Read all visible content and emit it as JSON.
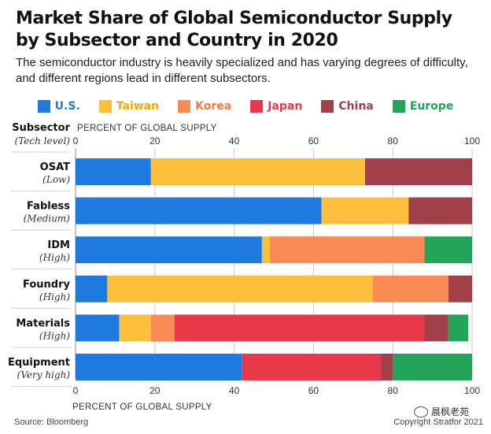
{
  "header": {
    "title": "Market Share of Global Semiconductor Supply by Subsector and Country in 2020",
    "subtitle": "The semiconductor industry is heavily specialized and has varying degrees of difficulty, and different regions lead in different subsectors."
  },
  "legend": [
    {
      "label": "U.S.",
      "color": "#1f7ae0"
    },
    {
      "label": "Taiwan",
      "color": "#fbbf3b"
    },
    {
      "label": "Korea",
      "color": "#f98a55"
    },
    {
      "label": "Japan",
      "color": "#e8394a"
    },
    {
      "label": "China",
      "color": "#a13f4b"
    },
    {
      "label": "Europe",
      "color": "#24a35a"
    }
  ],
  "chart_data": {
    "type": "bar",
    "orientation": "horizontal",
    "stacked": true,
    "categories": [
      "OSAT",
      "Fabless",
      "IDM",
      "Foundry",
      "Materials",
      "Equipment"
    ],
    "category_sublabels": [
      "(Low)",
      "(Medium)",
      "(High)",
      "(High)",
      "(High)",
      "(Very high)"
    ],
    "row_header": "Subsector",
    "row_header_sub": "(Tech level)",
    "xlabel_top": "PERCENT OF GLOBAL SUPPLY",
    "xlabel_bottom": "PERCENT OF GLOBAL SUPPLY",
    "xlim": [
      0,
      100
    ],
    "ticks": [
      0,
      20,
      40,
      60,
      80,
      100
    ],
    "series": [
      {
        "name": "U.S.",
        "color": "#1f7ae0",
        "values": [
          19,
          62,
          47,
          8,
          11,
          42
        ]
      },
      {
        "name": "Taiwan",
        "color": "#fbbf3b",
        "values": [
          54,
          22,
          2,
          67,
          8,
          0
        ]
      },
      {
        "name": "Korea",
        "color": "#f98a55",
        "values": [
          0,
          0,
          39,
          19,
          6,
          0
        ]
      },
      {
        "name": "Japan",
        "color": "#e8394a",
        "values": [
          0,
          0,
          0,
          0,
          63,
          35
        ]
      },
      {
        "name": "China",
        "color": "#a13f4b",
        "values": [
          27,
          16,
          0,
          6,
          6,
          3
        ]
      },
      {
        "name": "Europe",
        "color": "#24a35a",
        "values": [
          0,
          0,
          12,
          0,
          5,
          20
        ]
      }
    ]
  },
  "footer": {
    "source": "Source: Bloomberg",
    "watermark": "晨枫老苑",
    "credit": "Copyright Stratfor 2021"
  }
}
